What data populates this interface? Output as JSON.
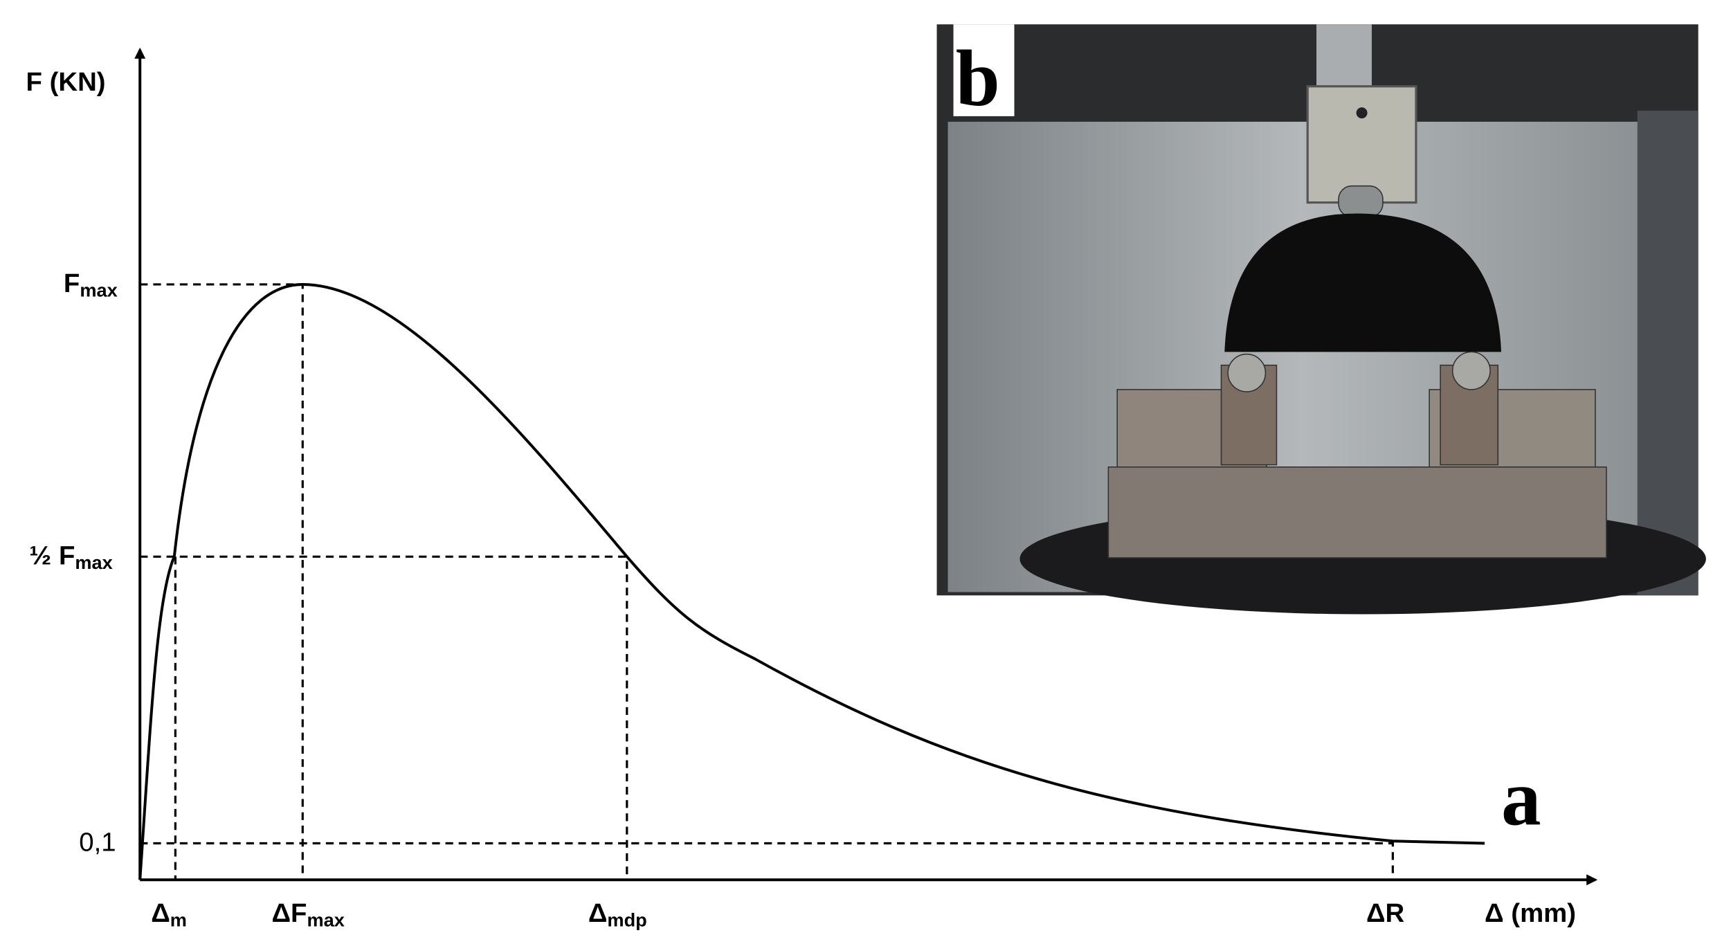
{
  "axes": {
    "y_label": "F (KN)",
    "x_label": "Δ (mm)"
  },
  "y_marks": [
    {
      "main": "F",
      "sub": "max"
    },
    {
      "main": "½ F",
      "sub": "max"
    },
    {
      "main": "0,1"
    }
  ],
  "x_marks": [
    {
      "main": "Δ",
      "sub": "m"
    },
    {
      "main": "ΔF",
      "sub": "max"
    },
    {
      "main": "Δ",
      "sub": "mdp"
    },
    {
      "main": "ΔR"
    }
  ],
  "panels": {
    "a": "a",
    "b": "b"
  }
}
